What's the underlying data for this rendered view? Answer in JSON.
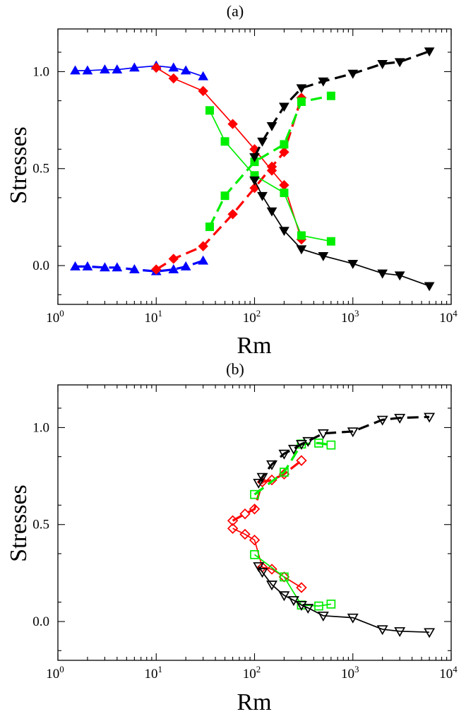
{
  "chart_data": [
    {
      "type": "line",
      "title": "(a)",
      "xlabel": "Rm",
      "ylabel": "Stresses",
      "xscale": "log",
      "xlim": [
        1,
        10000
      ],
      "ylim": [
        -0.2,
        1.22
      ],
      "xticks": [
        1,
        10,
        100,
        1000,
        10000
      ],
      "xtick_labels": [
        {
          "base": "10",
          "exp": "0"
        },
        {
          "base": "10",
          "exp": "1"
        },
        {
          "base": "10",
          "exp": "2"
        },
        {
          "base": "10",
          "exp": "3"
        },
        {
          "base": "10",
          "exp": "4"
        }
      ],
      "yticks": [
        0,
        0.5,
        1.0
      ],
      "ytick_labels": [
        "0.0",
        "0.5",
        "1.0"
      ],
      "grid": false,
      "series": [
        {
          "color": "#0000ff",
          "marker": "triangle-up",
          "filled": true,
          "dashed": false,
          "x": [
            1.5,
            2,
            3,
            4,
            6,
            10,
            15,
            20,
            30
          ],
          "y": [
            1.005,
            1.005,
            1.01,
            1.01,
            1.02,
            1.03,
            1.02,
            1.005,
            0.975
          ]
        },
        {
          "color": "#0000ff",
          "marker": "triangle-up",
          "filled": true,
          "dashed": true,
          "x": [
            1.5,
            2,
            3,
            4,
            6,
            10,
            15,
            20,
            30
          ],
          "y": [
            -0.005,
            -0.005,
            -0.01,
            -0.01,
            -0.02,
            -0.03,
            -0.02,
            -0.005,
            0.025
          ]
        },
        {
          "color": "#ff0000",
          "marker": "diamond",
          "filled": true,
          "dashed": false,
          "x": [
            10,
            15,
            30,
            60,
            100,
            150,
            200,
            300
          ],
          "y": [
            1.02,
            0.965,
            0.9,
            0.73,
            0.6,
            0.49,
            0.415,
            0.135
          ]
        },
        {
          "color": "#ff0000",
          "marker": "diamond",
          "filled": true,
          "dashed": true,
          "x": [
            10,
            15,
            30,
            60,
            100,
            150,
            200,
            300
          ],
          "y": [
            -0.02,
            0.035,
            0.1,
            0.265,
            0.4,
            0.51,
            0.585,
            0.865
          ]
        },
        {
          "color": "#00ee00",
          "marker": "square",
          "filled": true,
          "dashed": false,
          "x": [
            35,
            50,
            100,
            200,
            300,
            600
          ],
          "y": [
            0.8,
            0.64,
            0.465,
            0.375,
            0.155,
            0.125
          ]
        },
        {
          "color": "#00ee00",
          "marker": "square",
          "filled": true,
          "dashed": true,
          "x": [
            35,
            50,
            100,
            200,
            300,
            600
          ],
          "y": [
            0.2,
            0.36,
            0.535,
            0.625,
            0.845,
            0.875
          ]
        },
        {
          "color": "#000000",
          "marker": "triangle-down",
          "filled": true,
          "dashed": false,
          "x": [
            100,
            120,
            150,
            200,
            300,
            500,
            1000,
            2000,
            3000,
            6000
          ],
          "y": [
            0.44,
            0.36,
            0.28,
            0.18,
            0.085,
            0.05,
            0.01,
            -0.04,
            -0.05,
            -0.105
          ]
        },
        {
          "color": "#000000",
          "marker": "triangle-down",
          "filled": true,
          "dashed": true,
          "x": [
            100,
            120,
            150,
            200,
            300,
            500,
            1000,
            2000,
            3000,
            6000
          ],
          "y": [
            0.56,
            0.64,
            0.72,
            0.82,
            0.915,
            0.95,
            0.99,
            1.04,
            1.05,
            1.105
          ]
        }
      ]
    },
    {
      "type": "line",
      "title": "(b)",
      "xlabel": "Rm",
      "ylabel": "Stresses",
      "xscale": "log",
      "xlim": [
        1,
        10000
      ],
      "ylim": [
        -0.2,
        1.22
      ],
      "xticks": [
        1,
        10,
        100,
        1000,
        10000
      ],
      "xtick_labels": [
        {
          "base": "10",
          "exp": "0"
        },
        {
          "base": "10",
          "exp": "1"
        },
        {
          "base": "10",
          "exp": "2"
        },
        {
          "base": "10",
          "exp": "3"
        },
        {
          "base": "10",
          "exp": "4"
        }
      ],
      "yticks": [
        0,
        0.5,
        1.0
      ],
      "ytick_labels": [
        "0.0",
        "0.5",
        "1.0"
      ],
      "grid": false,
      "series": [
        {
          "color": "#ff0000",
          "marker": "diamond",
          "filled": false,
          "dashed": false,
          "x": [
            60,
            80,
            100,
            120,
            150,
            200,
            300
          ],
          "y": [
            0.48,
            0.45,
            0.42,
            0.28,
            0.27,
            0.23,
            0.175
          ]
        },
        {
          "color": "#ff0000",
          "marker": "diamond",
          "filled": false,
          "dashed": true,
          "x": [
            60,
            80,
            100,
            120,
            150,
            200,
            300
          ],
          "y": [
            0.52,
            0.555,
            0.58,
            0.72,
            0.73,
            0.76,
            0.83
          ]
        },
        {
          "color": "#00ee00",
          "marker": "square",
          "filled": false,
          "dashed": false,
          "x": [
            100,
            200,
            300,
            450,
            600
          ],
          "y": [
            0.345,
            0.23,
            0.085,
            0.08,
            0.09
          ]
        },
        {
          "color": "#00ee00",
          "marker": "square",
          "filled": false,
          "dashed": true,
          "x": [
            100,
            200,
            300,
            450,
            600
          ],
          "y": [
            0.655,
            0.77,
            0.915,
            0.92,
            0.91
          ]
        },
        {
          "color": "#000000",
          "marker": "triangle-down",
          "filled": false,
          "dashed": false,
          "x": [
            110,
            120,
            150,
            200,
            250,
            300,
            350,
            500,
            1000,
            2000,
            3000,
            6000
          ],
          "y": [
            0.285,
            0.255,
            0.19,
            0.135,
            0.11,
            0.085,
            0.07,
            0.03,
            0.02,
            -0.04,
            -0.05,
            -0.055
          ]
        },
        {
          "color": "#000000",
          "marker": "triangle-down",
          "filled": false,
          "dashed": true,
          "x": [
            110,
            120,
            150,
            200,
            250,
            300,
            350,
            500,
            1000,
            2000,
            3000,
            6000
          ],
          "y": [
            0.715,
            0.745,
            0.81,
            0.865,
            0.89,
            0.915,
            0.93,
            0.97,
            0.98,
            1.04,
            1.05,
            1.055
          ]
        }
      ]
    }
  ]
}
